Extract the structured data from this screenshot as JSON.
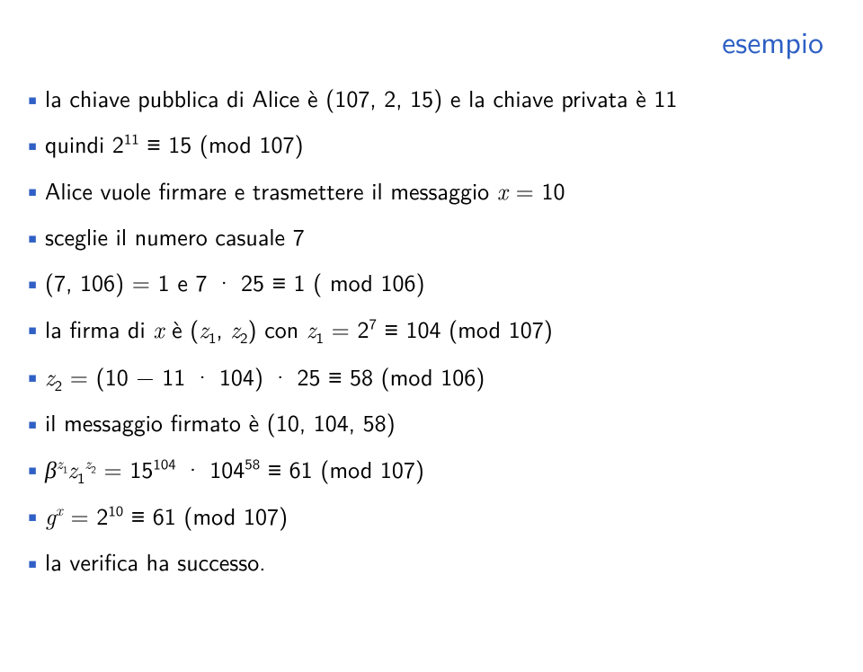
{
  "title": "esempio",
  "title_color": "#2d5fc4",
  "bullet_color": "#3060c5",
  "text_color": "#000000",
  "bullets_html": [
    "la chiave pubblica di Alice è (107, 2, 15) e la chiave privata è 11",
    "quindi 2<sup>11</sup> ≡ 15 (mod 107)",
    "Alice vuole firmare e trasmettere il messaggio <span class=\"it\">x</span> = 10",
    "sceglie il numero casuale 7",
    "(7, 106) = 1 e 7 · 25 ≡ 1 ( mod 106)",
    "la firma di <span class=\"it\">x</span> è (<span class=\"it\">z</span><sub>1</sub>, <span class=\"it\">z</span><sub>2</sub>) con <span class=\"it\">z</span><sub>1</sub> = 2<sup>7</sup> ≡ 104 (mod 107)",
    "<span class=\"it\">z</span><sub>2</sub> = (10 − 11 · 104) · 25 ≡ 58 (mod 106)",
    "il messaggio firmato è (10, 104, 58)",
    "<span class=\"it\">β</span><sup><span class=\"it\">z</span><sub>1</sub></sup><span class=\"it\">z</span><sub>1</sub><sup><span class=\"it\">z</span><sub>2</sub></sup> = 15<sup>104</sup> · 104<sup>58</sup> ≡ 61 (mod 107)",
    "<span class=\"it\">g</span><sup><span class=\"it\">x</span></sup> = 2<sup>10</sup> ≡ 61 (mod 107)",
    "la verifica ha successo."
  ]
}
